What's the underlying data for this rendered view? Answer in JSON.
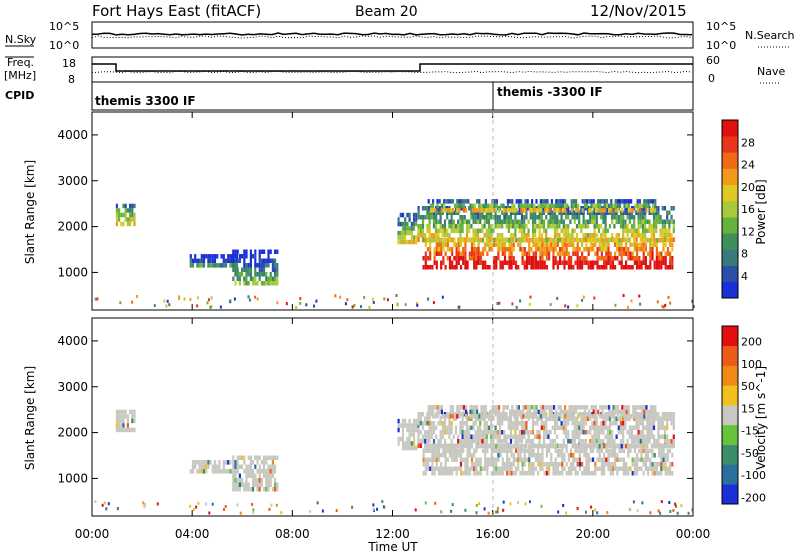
{
  "header": {
    "title": "Fort Hays East (fitACF)",
    "beam": "Beam 20",
    "date": "12/Nov/2015"
  },
  "aux_panels": {
    "nsky_label": "N.Sky",
    "nsky_ticks": [
      "10^5",
      "10^0"
    ],
    "nsearch_label": "N.Search",
    "nsearch_ticks": [
      "10^5",
      "10^0"
    ],
    "freq_label": "Freq.",
    "freq_unit": "[MHz]",
    "freq_ticks": [
      "18",
      "8"
    ],
    "nave_label": "Nave",
    "nave_ticks": [
      "60",
      "0"
    ],
    "cpid_label": "CPID",
    "cpid_segments": [
      {
        "text": "themis 3300 IF",
        "start_hour": 0
      },
      {
        "text": "themis -3300 IF",
        "start_hour": 16
      }
    ]
  },
  "chart_data": [
    {
      "type": "heatmap",
      "name": "power-panel",
      "xlabel": "",
      "ylabel": "Slant Range [km]",
      "xlim": [
        0,
        24
      ],
      "ylim": [
        180,
        4500
      ],
      "yticks": [
        1000,
        2000,
        3000,
        4000
      ],
      "colorbar": {
        "label": "Power [dB]",
        "ticks": [
          "4",
          "8",
          "12",
          "16",
          "20",
          "24",
          "28"
        ],
        "colors": [
          "#1a2fd6",
          "#2b4fa8",
          "#3a7a7a",
          "#3f8f5a",
          "#67b23c",
          "#a9c93a",
          "#e0c822",
          "#f29a1c",
          "#f06a14",
          "#e8361a",
          "#e01010"
        ]
      },
      "regions": [
        {
          "x": [
            0.95,
            1.7
          ],
          "y": [
            2050,
            2500
          ],
          "level": 0.45
        },
        {
          "x": [
            3.9,
            5.8
          ],
          "y": [
            1150,
            1400
          ],
          "level": 0.15
        },
        {
          "x": [
            5.6,
            7.4
          ],
          "y": [
            800,
            1500
          ],
          "level": 0.2
        },
        {
          "x": [
            12.2,
            13.0
          ],
          "y": [
            1700,
            2300
          ],
          "level": 0.35
        },
        {
          "x": [
            13.0,
            23.2
          ],
          "y": [
            1750,
            2450
          ],
          "level": 0.4
        },
        {
          "x": [
            13.2,
            23.2
          ],
          "y": [
            1150,
            1750
          ],
          "level": 0.8
        },
        {
          "x": [
            13.4,
            22.5
          ],
          "y": [
            2400,
            2600
          ],
          "level": 0.4
        }
      ]
    },
    {
      "type": "heatmap",
      "name": "velocity-panel",
      "xlabel": "Time UT",
      "ylabel": "Slant Range [km]",
      "xlim": [
        0,
        24
      ],
      "ylim": [
        180,
        4500
      ],
      "xticks": [
        "00:00",
        "04:00",
        "08:00",
        "12:00",
        "16:00",
        "20:00",
        "00:00"
      ],
      "yticks": [
        1000,
        2000,
        3000,
        4000
      ],
      "colorbar": {
        "label": "Velocity [m s^-1]",
        "ticks": [
          "200",
          "100",
          "50",
          "15",
          "-15",
          "-50",
          "-100",
          "-200"
        ],
        "colors": [
          "#1a2fd6",
          "#2b6f9e",
          "#3a8f6a",
          "#67c23c",
          "#c8c8c0",
          "#f2c01c",
          "#f08a14",
          "#ee5a1a",
          "#e01010"
        ]
      },
      "regions": [
        {
          "x": [
            0.95,
            1.7
          ],
          "y": [
            2050,
            2500
          ],
          "level": 0.5
        },
        {
          "x": [
            3.9,
            5.8
          ],
          "y": [
            1150,
            1400
          ],
          "level": 0.5
        },
        {
          "x": [
            5.6,
            7.4
          ],
          "y": [
            800,
            1500
          ],
          "level": 0.5
        },
        {
          "x": [
            12.2,
            13.0
          ],
          "y": [
            1700,
            2300
          ],
          "level": 0.35
        },
        {
          "x": [
            13.0,
            23.2
          ],
          "y": [
            1750,
            2450
          ],
          "level": 0.5
        },
        {
          "x": [
            13.2,
            23.2
          ],
          "y": [
            1150,
            1750
          ],
          "level": 0.5
        },
        {
          "x": [
            13.4,
            22.5
          ],
          "y": [
            2400,
            2600
          ],
          "level": 0.5
        }
      ]
    }
  ]
}
